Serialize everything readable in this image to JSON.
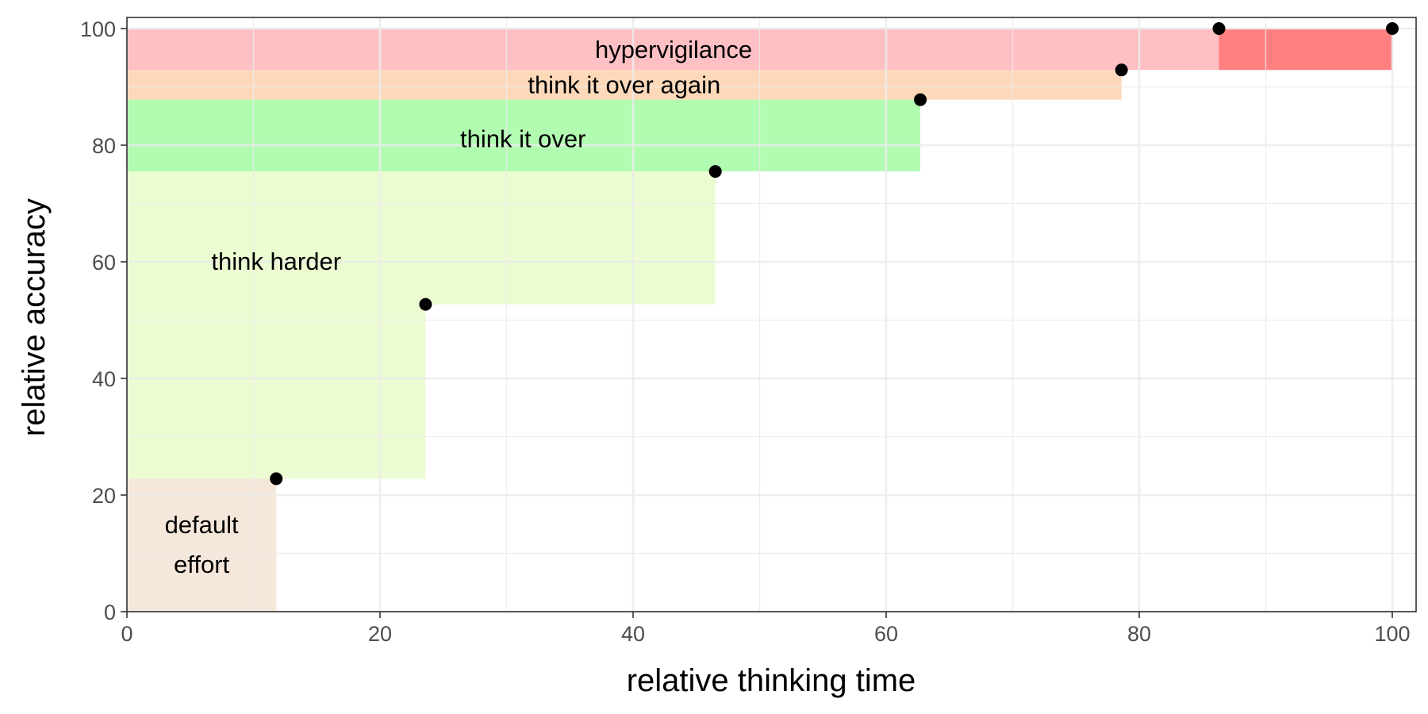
{
  "chart_data": {
    "type": "scatter",
    "title": "",
    "xlabel": "relative thinking time",
    "ylabel": "relative accuracy",
    "xlim": [
      0,
      100
    ],
    "ylim": [
      0,
      100
    ],
    "x_ticks": [
      0,
      20,
      40,
      60,
      80,
      100
    ],
    "y_ticks": [
      0,
      20,
      40,
      60,
      80,
      100
    ],
    "grid": true,
    "points": [
      {
        "x": 11.8,
        "y": 22.8
      },
      {
        "x": 23.6,
        "y": 52.7
      },
      {
        "x": 46.5,
        "y": 75.5
      },
      {
        "x": 62.7,
        "y": 87.8
      },
      {
        "x": 78.6,
        "y": 92.9
      },
      {
        "x": 86.3,
        "y": 100
      },
      {
        "x": 100,
        "y": 100
      }
    ],
    "regions": [
      {
        "label": "default effort",
        "color": "#f5e8db",
        "blocks": [
          {
            "x": [
              0,
              11.8
            ],
            "y": [
              0,
              22.8
            ]
          }
        ]
      },
      {
        "label": "think harder",
        "color": "#ecfcd2",
        "blocks": [
          {
            "x": [
              0,
              23.6
            ],
            "y": [
              22.8,
              52.7
            ]
          },
          {
            "x": [
              0,
              46.5
            ],
            "y": [
              52.7,
              75.5
            ]
          }
        ]
      },
      {
        "label": "think it over",
        "color": "#b2fcb2",
        "blocks": [
          {
            "x": [
              0,
              62.7
            ],
            "y": [
              75.5,
              87.8
            ]
          }
        ]
      },
      {
        "label": "think it over again",
        "color": "#fdd9b9",
        "blocks": [
          {
            "x": [
              0,
              78.6
            ],
            "y": [
              87.8,
              92.9
            ]
          }
        ]
      },
      {
        "label": "hypervigilance",
        "color": "#ffc0c4",
        "blocks": [
          {
            "x": [
              0,
              86.3
            ],
            "y": [
              92.9,
              100
            ]
          },
          {
            "x": [
              86.3,
              100
            ],
            "y": [
              92.9,
              100
            ],
            "color": "#ff8080"
          }
        ]
      }
    ],
    "annotations": [
      {
        "lines": [
          "default",
          "effort"
        ],
        "x": 5.9,
        "y": 11.4
      },
      {
        "lines": [
          "think harder"
        ],
        "x": 11.8,
        "y": 60
      },
      {
        "lines": [
          "think it over"
        ],
        "x": 31.3,
        "y": 81
      },
      {
        "lines": [
          "think it over again"
        ],
        "x": 39.3,
        "y": 90.3
      },
      {
        "lines": [
          "hypervigilance"
        ],
        "x": 43.2,
        "y": 96.3
      }
    ]
  }
}
